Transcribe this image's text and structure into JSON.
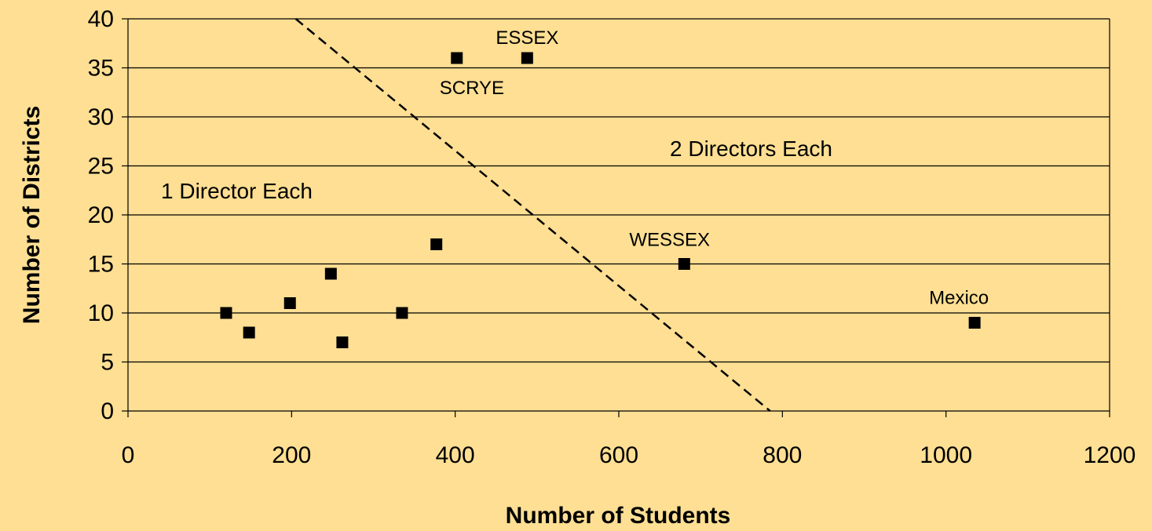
{
  "background_color": "#FEDF93",
  "chart_data": {
    "type": "scatter",
    "title": "",
    "xlabel": "Number of Students",
    "ylabel": "Number of Districts",
    "xlim": [
      0,
      1200
    ],
    "ylim": [
      0,
      40
    ],
    "xticks": [
      0,
      200,
      400,
      600,
      800,
      1000,
      1200
    ],
    "yticks": [
      0,
      5,
      10,
      15,
      20,
      25,
      30,
      35,
      40
    ],
    "grid": "horizontal",
    "legend": "none",
    "marker": "square",
    "marker_color": "#000000",
    "points": [
      {
        "x": 120,
        "y": 10,
        "label": ""
      },
      {
        "x": 148,
        "y": 8,
        "label": ""
      },
      {
        "x": 198,
        "y": 11,
        "label": ""
      },
      {
        "x": 248,
        "y": 14,
        "label": ""
      },
      {
        "x": 262,
        "y": 7,
        "label": ""
      },
      {
        "x": 335,
        "y": 10,
        "label": ""
      },
      {
        "x": 377,
        "y": 17,
        "label": ""
      },
      {
        "x": 402,
        "y": 36,
        "label": "SCRYE"
      },
      {
        "x": 488,
        "y": 36,
        "label": "ESSEX"
      },
      {
        "x": 680,
        "y": 15,
        "label": "WESSEX"
      },
      {
        "x": 1035,
        "y": 9,
        "label": "Mexico"
      }
    ],
    "dividing_line": {
      "style": "dashed",
      "x": [
        205,
        785
      ],
      "y": [
        40,
        0
      ]
    },
    "region_labels": [
      {
        "text": "1 Director Each"
      },
      {
        "text": "2 Directors Each"
      }
    ]
  }
}
